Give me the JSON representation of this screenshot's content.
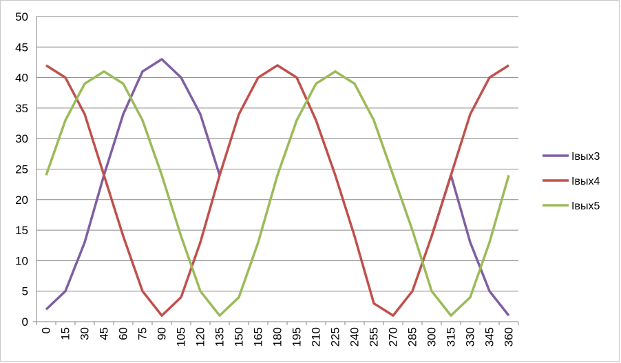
{
  "chart_data": {
    "type": "line",
    "title": "",
    "xlabel": "",
    "ylabel": "",
    "categories": [
      "0",
      "15",
      "30",
      "45",
      "60",
      "75",
      "90",
      "105",
      "120",
      "135",
      "150",
      "165",
      "180",
      "195",
      "210",
      "225",
      "240",
      "255",
      "270",
      "285",
      "300",
      "315",
      "330",
      "345",
      "360"
    ],
    "ylim": [
      0,
      50
    ],
    "yticks": [
      0,
      5,
      10,
      15,
      20,
      25,
      30,
      35,
      40,
      45,
      50
    ],
    "grid": "horizontal",
    "legend_position": "right",
    "series": [
      {
        "name": "Iвых3",
        "color": "#7f5fa3",
        "values": [
          2,
          5,
          13,
          24,
          34,
          41,
          43,
          40,
          34,
          24,
          null,
          null,
          null,
          null,
          null,
          null,
          null,
          null,
          null,
          null,
          14,
          24,
          13,
          5,
          1
        ]
      },
      {
        "name": "Iвых4",
        "color": "#c0504d",
        "values": [
          42,
          40,
          34,
          24,
          14,
          5,
          1,
          4,
          13,
          24,
          34,
          40,
          42,
          40,
          33,
          24,
          14,
          3,
          1,
          5,
          14,
          24,
          34,
          40,
          42
        ]
      },
      {
        "name": "Iвых5",
        "color": "#9bbb59",
        "values": [
          24,
          33,
          39,
          41,
          39,
          33,
          24,
          14,
          5,
          1,
          4,
          13,
          24,
          33,
          39,
          41,
          39,
          33,
          24,
          15,
          5,
          1,
          4,
          13,
          24
        ]
      }
    ]
  }
}
